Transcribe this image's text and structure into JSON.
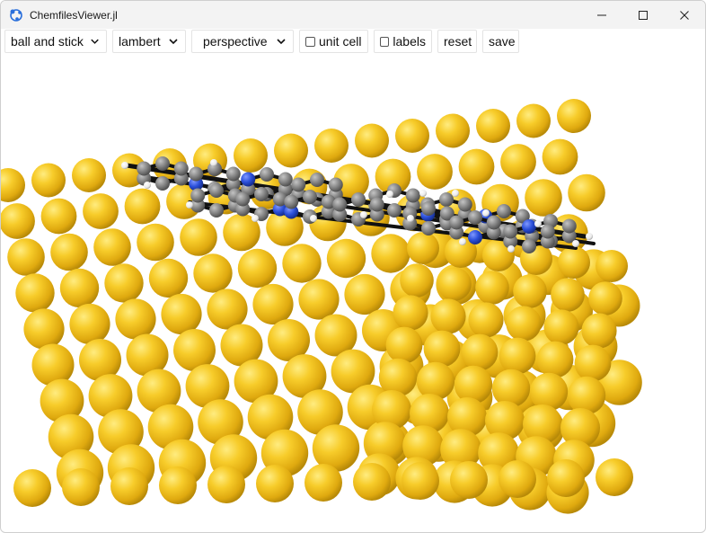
{
  "window": {
    "title": "ChemfilesViewer.jl",
    "icon": "app-logo-icon"
  },
  "window_controls": [
    "minimize-icon",
    "maximize-icon",
    "close-icon"
  ],
  "toolbar": {
    "representation": {
      "value": "ball and stick",
      "icon": "chevron-down-icon"
    },
    "shading": {
      "value": "lambert",
      "icon": "chevron-down-icon"
    },
    "camera": {
      "value": "perspective",
      "icon": "chevron-down-icon"
    },
    "unit_cell": {
      "label": "unit cell",
      "checked": false
    },
    "labels": {
      "label": "labels",
      "checked": false
    },
    "reset_label": "reset",
    "save_label": "save"
  },
  "scene": {
    "background": "#ffffff",
    "colors": {
      "gold": "#f2c21e",
      "carbon": "#808080",
      "nitrogen": "#2b4fd9",
      "hydrogen": "#ffffff",
      "bond": "#111111"
    }
  }
}
